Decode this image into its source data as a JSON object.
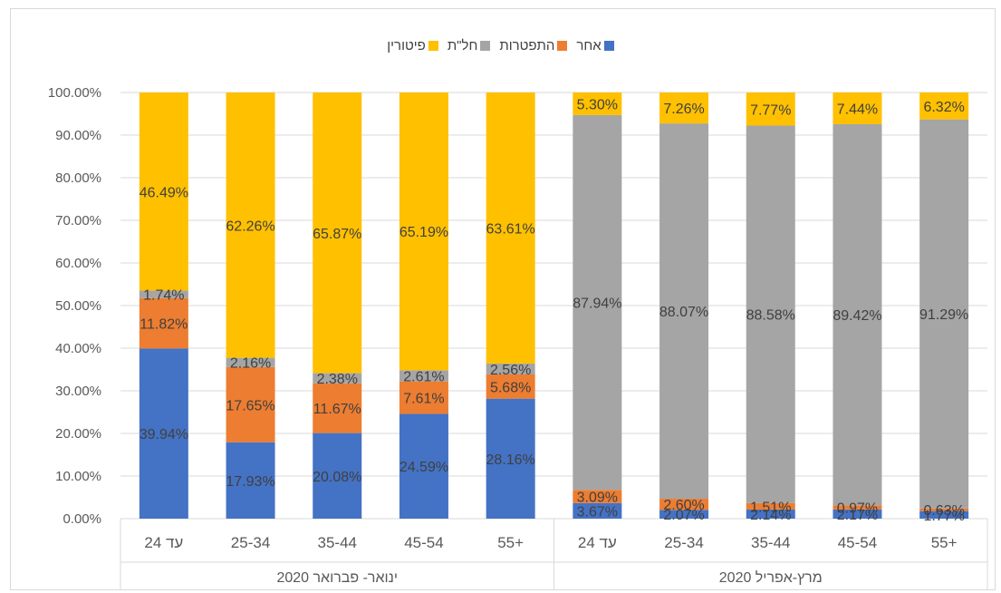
{
  "chart_data": {
    "type": "bar",
    "stacked": true,
    "percent": true,
    "groups": [
      {
        "label": "ינואר- פברואר 2020",
        "categories": [
          "עד 24",
          "25-34",
          "35-44",
          "45-54",
          "+55"
        ]
      },
      {
        "label": "מרץ-אפריל 2020",
        "categories": [
          "עד 24",
          "25-34",
          "35-44",
          "45-54",
          "+55"
        ]
      }
    ],
    "category_order": "right-to-left",
    "series": [
      {
        "name": "אחר",
        "color": "#4472C4",
        "values": [
          39.94,
          17.93,
          20.08,
          24.59,
          28.16,
          3.67,
          2.07,
          2.14,
          2.17,
          1.77
        ],
        "labels": [
          "39.94%",
          "17.93%",
          "20.08%",
          "24.59%",
          "28.16%",
          "3.67%",
          "2.07%",
          "2.14%",
          "2.17%",
          "1.77%"
        ]
      },
      {
        "name": "התפטרות",
        "color": "#ED7D31",
        "values": [
          11.82,
          17.65,
          11.67,
          7.61,
          5.68,
          3.09,
          2.6,
          1.51,
          0.97,
          0.63
        ],
        "labels": [
          "11.82%",
          "17.65%",
          "11.67%",
          "7.61%",
          "5.68%",
          "3.09%",
          "2.60%",
          "1.51%",
          "0.97%",
          "0.63%"
        ]
      },
      {
        "name": "חל\"ת",
        "color": "#A5A5A5",
        "values": [
          1.74,
          2.16,
          2.38,
          2.61,
          2.56,
          87.94,
          88.07,
          88.58,
          89.42,
          91.29
        ],
        "labels": [
          "1.74%",
          "2.16%",
          "2.38%",
          "2.61%",
          "2.56%",
          "87.94%",
          "88.07%",
          "88.58%",
          "89.42%",
          "91.29%"
        ]
      },
      {
        "name": "פיטורין",
        "color": "#FFC000",
        "values": [
          46.49,
          62.26,
          65.87,
          65.19,
          63.61,
          5.3,
          7.26,
          7.77,
          7.44,
          6.32
        ],
        "labels": [
          "46.49%",
          "62.26%",
          "65.87%",
          "65.19%",
          "63.61%",
          "5.30%",
          "7.26%",
          "7.77%",
          "7.44%",
          "6.32%"
        ]
      }
    ],
    "yticks": [
      "0.00%",
      "10.00%",
      "20.00%",
      "30.00%",
      "40.00%",
      "50.00%",
      "60.00%",
      "70.00%",
      "80.00%",
      "90.00%",
      "100.00%"
    ],
    "ylim": [
      0,
      100
    ],
    "grid": true,
    "legend_position": "top"
  }
}
